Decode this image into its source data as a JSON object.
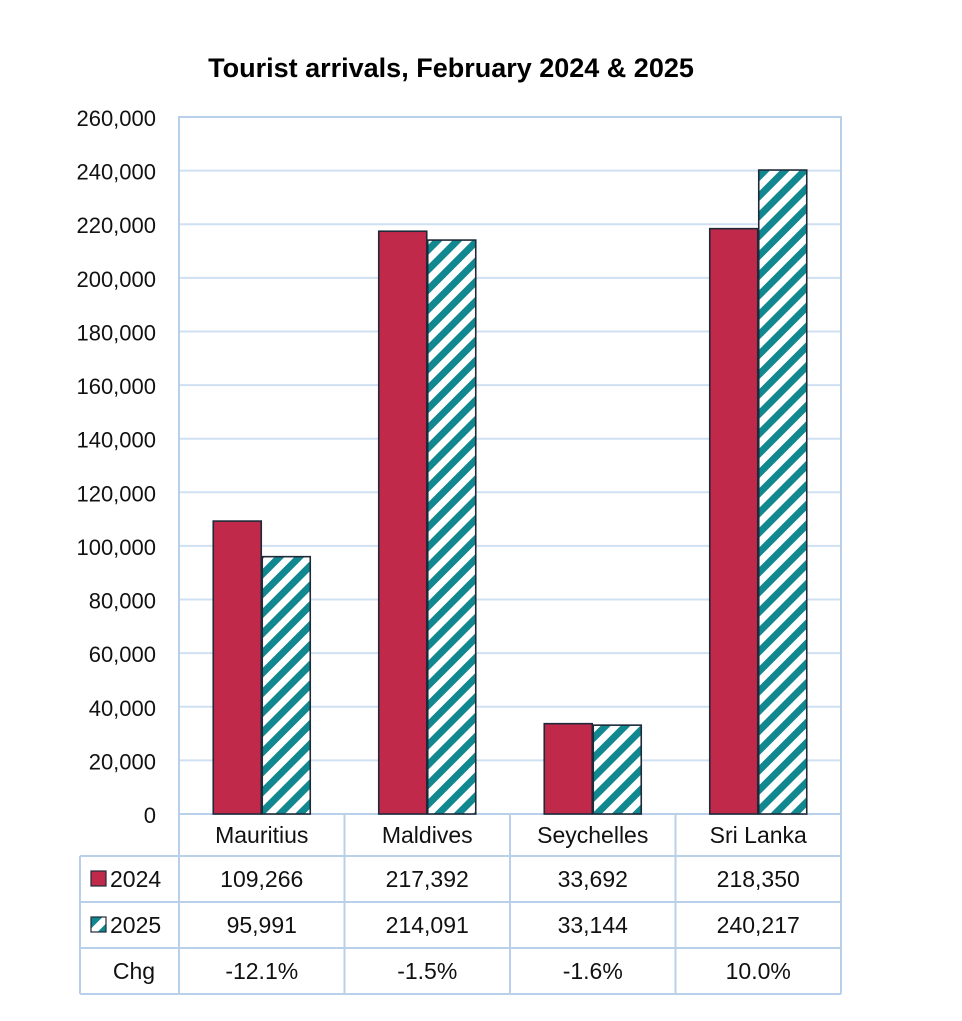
{
  "chart_data": {
    "type": "bar",
    "title": "Tourist arrivals, February 2024 & 2025",
    "categories": [
      "Mauritius",
      "Maldives",
      "Seychelles",
      "Sri Lanka"
    ],
    "series": [
      {
        "name": "2024",
        "values": [
          109266,
          217392,
          33692,
          218350
        ],
        "color": "#c0294a",
        "pattern": "solid"
      },
      {
        "name": "2025",
        "values": [
          95991,
          214091,
          33144,
          240217
        ],
        "color": "#11878f",
        "pattern": "diagonal-stripes"
      }
    ],
    "ylim": [
      0,
      260000
    ],
    "yticks": [
      0,
      20000,
      40000,
      60000,
      80000,
      100000,
      120000,
      140000,
      160000,
      180000,
      200000,
      220000,
      240000,
      260000
    ],
    "ytick_labels": [
      "0",
      "20,000",
      "40,000",
      "60,000",
      "80,000",
      "100,000",
      "120,000",
      "140,000",
      "160,000",
      "180,000",
      "200,000",
      "220,000",
      "240,000",
      "260,000"
    ],
    "grid": true,
    "legend": "data-table",
    "data_table": {
      "rows": [
        {
          "label": "2024",
          "series_index": 0,
          "cells": [
            "109,266",
            "217,392",
            "33,692",
            "218,350"
          ]
        },
        {
          "label": "2025",
          "series_index": 1,
          "cells": [
            "95,991",
            "214,091",
            "33,144",
            "240,217"
          ]
        },
        {
          "label": "Chg",
          "series_index": null,
          "cells": [
            "-12.1%",
            "-1.5%",
            "-1.6%",
            "10.0%"
          ]
        }
      ]
    },
    "colors": {
      "grid": "#cfe0f2",
      "border": "#b8d0ea",
      "bar_outline": "#1e2a38"
    }
  }
}
